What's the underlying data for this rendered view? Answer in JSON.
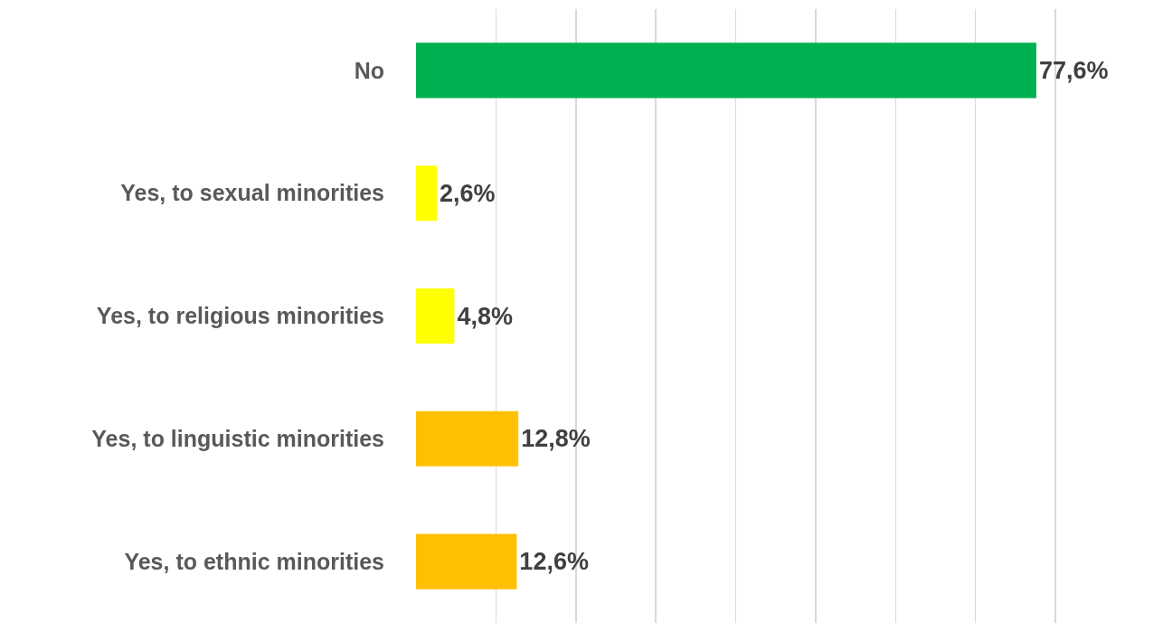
{
  "chart_data": {
    "type": "bar",
    "orientation": "horizontal",
    "categories": [
      "No",
      "Yes, to sexual minorities",
      "Yes, to religious minorities",
      "Yes, to linguistic minorities",
      "Yes, to ethnic minorities"
    ],
    "values": [
      77.6,
      2.6,
      4.8,
      12.8,
      12.6
    ],
    "colors": [
      "#00b050",
      "#ffff00",
      "#ffff00",
      "#ffc000",
      "#ffc000"
    ],
    "value_labels": [
      "77,6%",
      "2,6%",
      "4,8%",
      "12,8%",
      "12,6%"
    ],
    "grid": "x",
    "tick_labels": "y"
  }
}
